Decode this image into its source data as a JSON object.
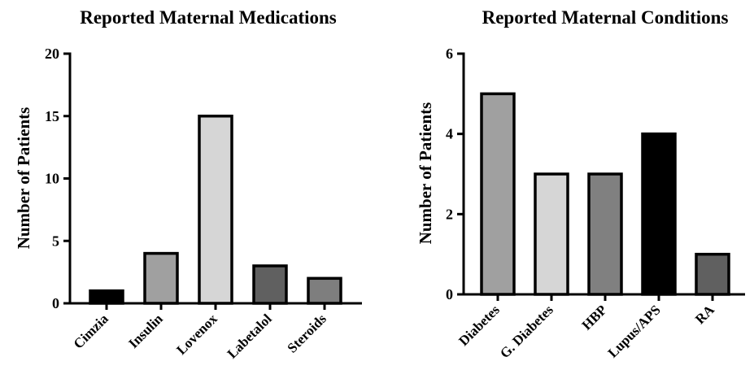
{
  "chart_data": [
    {
      "type": "bar",
      "title": "Reported Maternal Medications",
      "ylabel": "Number of Patients",
      "xlabel": "",
      "ylim": [
        0,
        20
      ],
      "yticks": [
        0,
        5,
        10,
        15,
        20
      ],
      "categories": [
        "Cimzia",
        "Insulin",
        "Lovenox",
        "Labetalol",
        "Steroids"
      ],
      "values": [
        1,
        4,
        15,
        3,
        2
      ],
      "colors": [
        "#000000",
        "#a0a0a0",
        "#d6d6d6",
        "#606060",
        "#7e7e7e"
      ],
      "grid": false
    },
    {
      "type": "bar",
      "title": "Reported Maternal Conditions",
      "ylabel": "Number of Patients",
      "xlabel": "",
      "ylim": [
        0,
        6
      ],
      "yticks": [
        0,
        2,
        4,
        6
      ],
      "categories": [
        "Diabetes",
        "G. Diabetes",
        "HBP",
        "Lupus/APS",
        "RA"
      ],
      "values": [
        5,
        3,
        3,
        4,
        1
      ],
      "colors": [
        "#a0a0a0",
        "#d6d6d6",
        "#808080",
        "#000000",
        "#606060"
      ],
      "grid": false
    }
  ]
}
